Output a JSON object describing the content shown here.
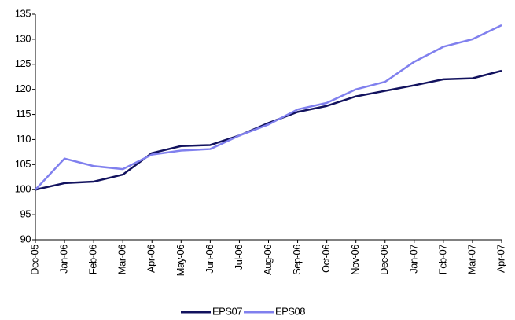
{
  "chart_data": {
    "type": "line",
    "categories": [
      "Dec-05",
      "Jan-06",
      "Feb-06",
      "Mar-06",
      "Apr-06",
      "May-06",
      "Jun-06",
      "Jul-06",
      "Aug-06",
      "Sep-06",
      "Oct-06",
      "Nov-06",
      "Dec-06",
      "Jan-07",
      "Feb-07",
      "Mar-07",
      "Apr-07"
    ],
    "series": [
      {
        "name": "EPS07",
        "color": "#12125e",
        "values": [
          100,
          101.3,
          101.6,
          103,
          107.3,
          108.7,
          108.9,
          110.8,
          113.3,
          115.5,
          116.7,
          118.6,
          119.7,
          120.8,
          122,
          122.2,
          123.7
        ]
      },
      {
        "name": "EPS08",
        "color": "#8080ee",
        "values": [
          100,
          106.2,
          104.7,
          104.1,
          107,
          107.8,
          108.1,
          110.8,
          113,
          116,
          117.3,
          120,
          121.5,
          125.5,
          128.5,
          130,
          132.8
        ]
      }
    ],
    "ylim": [
      90,
      135
    ],
    "yticks": [
      90,
      95,
      100,
      105,
      110,
      115,
      120,
      125,
      130,
      135
    ],
    "grid": false,
    "legend": "bottom"
  }
}
